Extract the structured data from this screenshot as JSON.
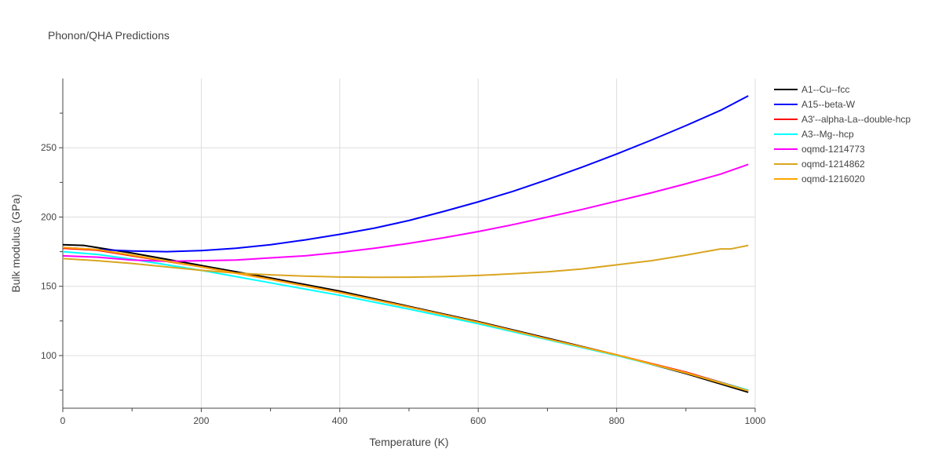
{
  "chart_data": {
    "type": "line",
    "title": "Phonon/QHA Predictions",
    "xlabel": "Temperature (K)",
    "ylabel": "Bulk modulus (GPa)",
    "xlim": [
      0,
      1000
    ],
    "ylim": [
      62,
      300
    ],
    "xticks": [
      0,
      200,
      400,
      600,
      800,
      1000
    ],
    "yticks": [
      100,
      150,
      200,
      250
    ],
    "grid": true,
    "legend_position": "top-right",
    "series": [
      {
        "name": "A1--Cu--fcc",
        "color": "#000000",
        "x": [
          0,
          30,
          100,
          200,
          300,
          400,
          500,
          600,
          700,
          800,
          900,
          990
        ],
        "y": [
          180,
          179.5,
          174,
          165,
          156,
          146.5,
          135.5,
          124.5,
          112.5,
          100.5,
          87,
          73.5
        ]
      },
      {
        "name": "A15--beta-W",
        "color": "#0000ff",
        "x": [
          0,
          50,
          100,
          150,
          200,
          250,
          300,
          350,
          400,
          450,
          500,
          550,
          600,
          650,
          700,
          750,
          800,
          850,
          900,
          950,
          990
        ],
        "y": [
          178,
          176.5,
          175.5,
          175,
          175.8,
          177.5,
          180,
          183.5,
          187.5,
          192,
          197.5,
          204,
          211,
          218.5,
          227,
          236,
          245.5,
          255.5,
          266,
          277,
          287.5
        ]
      },
      {
        "name": "A3'--alpha-La--double-hcp",
        "color": "#ff0000",
        "x": [
          0,
          50,
          100,
          200,
          300,
          400,
          500,
          600,
          700,
          800,
          900,
          990
        ],
        "y": [
          177.5,
          176,
          172,
          164,
          155,
          145.5,
          135,
          124,
          112,
          100.5,
          88,
          75
        ]
      },
      {
        "name": "A3--Mg--hcp",
        "color": "#00ffff",
        "x": [
          0,
          50,
          100,
          200,
          300,
          400,
          500,
          600,
          700,
          800,
          900,
          990
        ],
        "y": [
          175,
          173,
          169.5,
          161.5,
          152.5,
          143.5,
          133.5,
          123,
          111.5,
          100,
          87.5,
          75
        ]
      },
      {
        "name": "oqmd-1214773",
        "color": "#ff00ff",
        "x": [
          0,
          50,
          100,
          150,
          200,
          250,
          300,
          350,
          400,
          450,
          500,
          550,
          600,
          650,
          700,
          750,
          800,
          850,
          900,
          950,
          990
        ],
        "y": [
          172,
          171,
          169,
          168,
          168.5,
          169,
          170.5,
          172,
          174.5,
          177.5,
          181,
          185,
          189.5,
          194.5,
          200,
          205.5,
          211.5,
          217.5,
          224,
          231,
          238
        ]
      },
      {
        "name": "oqmd-1214862",
        "color": "#daa520",
        "x": [
          0,
          50,
          100,
          150,
          200,
          250,
          300,
          350,
          400,
          450,
          500,
          550,
          600,
          650,
          700,
          750,
          800,
          850,
          900,
          950,
          965,
          975,
          990
        ],
        "y": [
          170,
          168.5,
          166.5,
          164,
          161.5,
          159.5,
          158.3,
          157.3,
          156.7,
          156.5,
          156.6,
          157,
          157.8,
          159,
          160.5,
          162.5,
          165.5,
          168.5,
          172.5,
          177,
          177,
          178,
          179.5
        ]
      },
      {
        "name": "oqmd-1216020",
        "color": "#ffa500",
        "x": [
          0,
          50,
          100,
          200,
          300,
          400,
          500,
          600,
          700,
          800,
          900,
          990
        ],
        "y": [
          178,
          176.5,
          172.5,
          164,
          155,
          145.5,
          135,
          124,
          112,
          100.5,
          87.5,
          74.5
        ]
      }
    ]
  }
}
